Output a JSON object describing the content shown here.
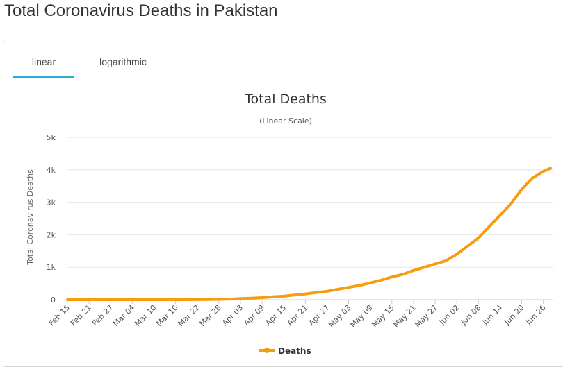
{
  "page": {
    "title": "Total Coronavirus Deaths in Pakistan"
  },
  "tabs": [
    {
      "label": "linear",
      "active": true
    },
    {
      "label": "logarithmic",
      "active": false
    }
  ],
  "colors": {
    "series": "#f89b0c",
    "tab_active": "#29aae1",
    "grid": "#e6e6e6"
  },
  "chart_data": {
    "type": "line",
    "title": "Total Deaths",
    "subtitle": "(Linear Scale)",
    "ylabel": "Total Coronavirus Deaths",
    "xlabel": "",
    "ylim": [
      0,
      5000
    ],
    "yticks": [
      0,
      1000,
      2000,
      3000,
      4000,
      5000
    ],
    "ytick_labels": [
      "0",
      "1k",
      "2k",
      "3k",
      "4k",
      "5k"
    ],
    "x_start": "Feb 15",
    "x_end": "Jun 28",
    "xtick_labels": [
      "Feb 15",
      "Feb 21",
      "Feb 27",
      "Mar 04",
      "Mar 10",
      "Mar 16",
      "Mar 22",
      "Mar 28",
      "Apr 03",
      "Apr 09",
      "Apr 15",
      "Apr 21",
      "Apr 27",
      "May 03",
      "May 09",
      "May 15",
      "May 21",
      "May 27",
      "Jun 02",
      "Jun 08",
      "Jun 14",
      "Jun 20",
      "Jun 26"
    ],
    "legend": {
      "position": "bottom-center"
    },
    "grid": true,
    "series": [
      {
        "name": "Deaths",
        "points": [
          [
            "Feb 15",
            0
          ],
          [
            "Mar 18",
            1
          ],
          [
            "Mar 22",
            3
          ],
          [
            "Mar 25",
            7
          ],
          [
            "Mar 28",
            11
          ],
          [
            "Mar 31",
            20
          ],
          [
            "Apr 03",
            35
          ],
          [
            "Apr 06",
            50
          ],
          [
            "Apr 09",
            65
          ],
          [
            "Apr 12",
            90
          ],
          [
            "Apr 15",
            110
          ],
          [
            "Apr 18",
            145
          ],
          [
            "Apr 21",
            180
          ],
          [
            "Apr 24",
            220
          ],
          [
            "Apr 27",
            260
          ],
          [
            "Apr 30",
            320
          ],
          [
            "May 03",
            380
          ],
          [
            "May 06",
            440
          ],
          [
            "May 09",
            520
          ],
          [
            "May 12",
            600
          ],
          [
            "May 15",
            700
          ],
          [
            "May 18",
            780
          ],
          [
            "May 21",
            900
          ],
          [
            "May 24",
            1000
          ],
          [
            "May 27",
            1100
          ],
          [
            "May 30",
            1200
          ],
          [
            "Jun 02",
            1400
          ],
          [
            "Jun 05",
            1650
          ],
          [
            "Jun 08",
            1900
          ],
          [
            "Jun 11",
            2250
          ],
          [
            "Jun 14",
            2600
          ],
          [
            "Jun 17",
            2950
          ],
          [
            "Jun 20",
            3400
          ],
          [
            "Jun 23",
            3750
          ],
          [
            "Jun 26",
            3950
          ],
          [
            "Jun 28",
            4050
          ]
        ]
      }
    ]
  }
}
